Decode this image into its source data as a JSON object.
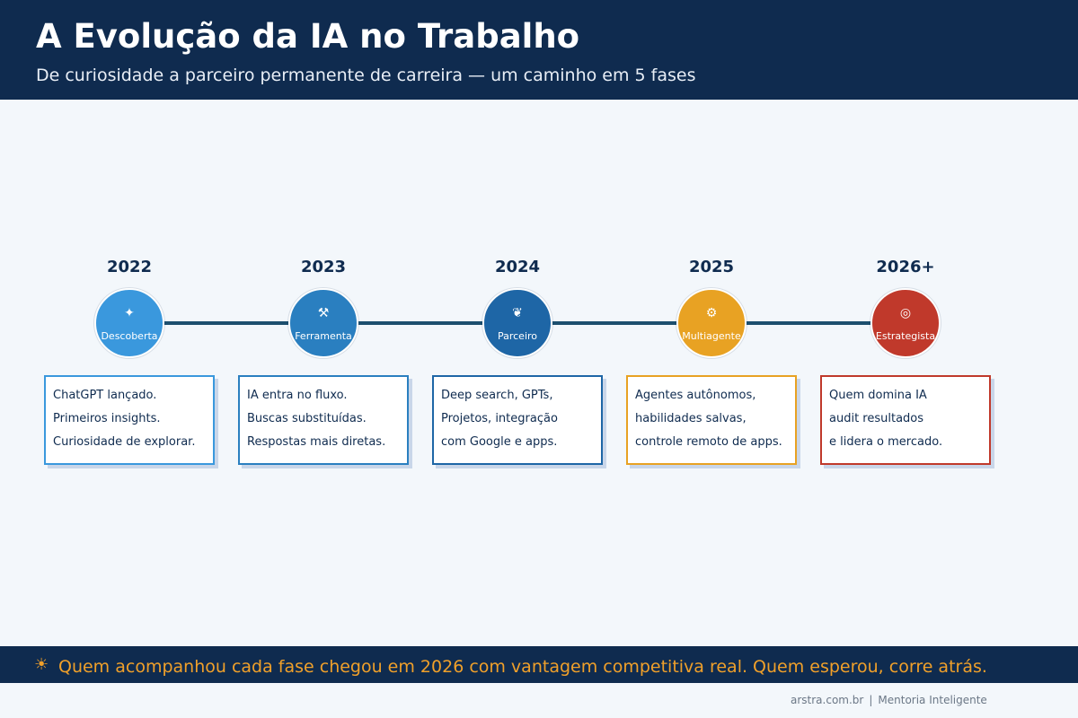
{
  "header": {
    "title": "A Evolução da IA no Trabalho",
    "subtitle": "De curiosidade a parceiro permanente de carreira — um caminho em 5 fases"
  },
  "phases": [
    {
      "year": "2022",
      "label": "Descoberta",
      "icon": "sparkle-icon",
      "color": "#3a98dd",
      "lines": [
        "ChatGPT lançado.",
        "Primeiros insights.",
        "Curiosidade de explorar."
      ]
    },
    {
      "year": "2023",
      "label": "Ferramenta",
      "icon": "tool-icon",
      "color": "#2a7fc0",
      "lines": [
        "IA entra no fluxo.",
        "Buscas substituídas.",
        "Respostas mais diretas."
      ]
    },
    {
      "year": "2024",
      "label": "Parceiro",
      "icon": "handshake-icon",
      "color": "#1e66a6",
      "lines": [
        "Deep search, GPTs,",
        "Projetos, integração",
        "com Google e apps."
      ]
    },
    {
      "year": "2025",
      "label": "Multiagente",
      "icon": "robot-icon",
      "color": "#e8a223",
      "lines": [
        "Agentes autônomos,",
        "habilidades salvas,",
        "controle remoto de apps."
      ]
    },
    {
      "year": "2026+",
      "label": "Estrategista",
      "icon": "target-icon",
      "color": "#c0392b",
      "lines": [
        "Quem domina IA",
        "audit resultados",
        "e lidera o mercado."
      ]
    }
  ],
  "footer": {
    "icon": "lightbulb-icon",
    "text": "Quem acompanhou cada fase chegou em 2026 com vantagem competitiva real. Quem esperou, corre atrás."
  },
  "credits": {
    "site": "arstra.com.br",
    "separator": "|",
    "brand": "Mentoria Inteligente"
  }
}
